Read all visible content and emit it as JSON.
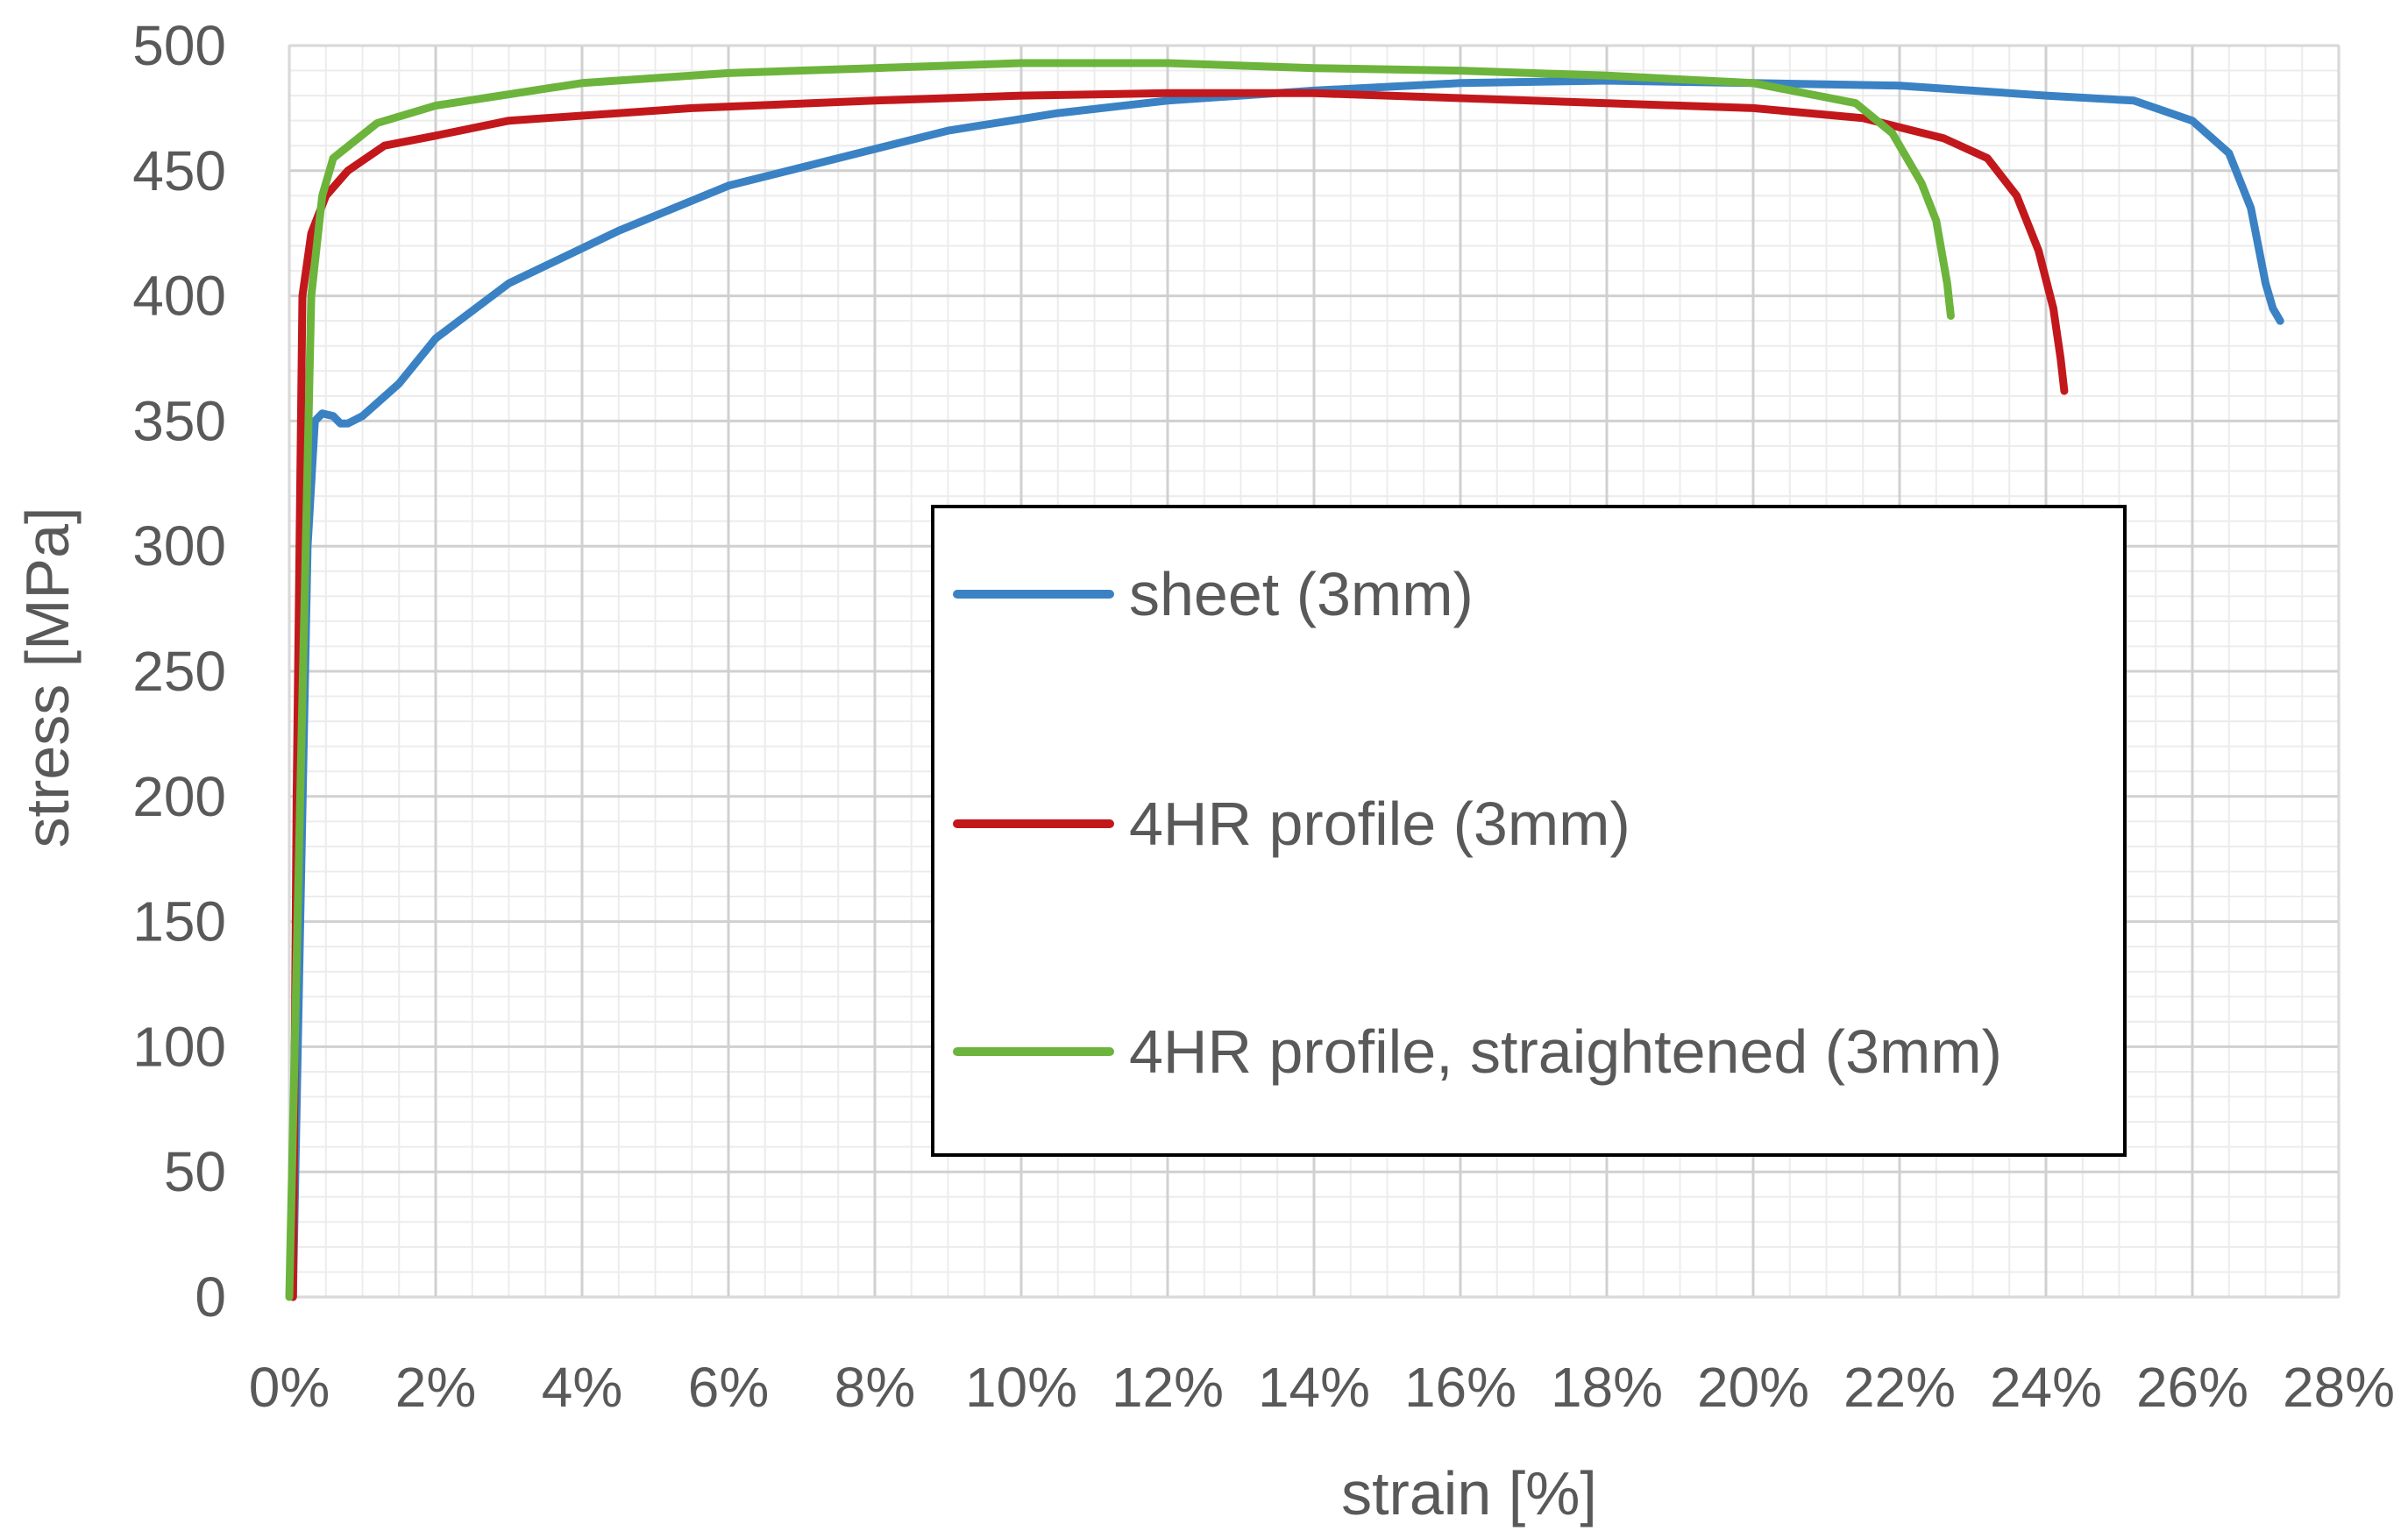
{
  "chart_data": {
    "type": "line",
    "title": "",
    "xlabel": "strain [%]",
    "ylabel": "stress  [MPa]",
    "xlim": [
      0,
      28
    ],
    "ylim": [
      0,
      500
    ],
    "x_ticks": [
      "0%",
      "2%",
      "4%",
      "6%",
      "8%",
      "10%",
      "12%",
      "14%",
      "16%",
      "18%",
      "20%",
      "22%",
      "24%",
      "26%",
      "28%"
    ],
    "y_ticks": [
      "0",
      "50",
      "100",
      "150",
      "200",
      "250",
      "300",
      "350",
      "400",
      "450",
      "500"
    ],
    "grid": true,
    "legend_position": "center-right",
    "series": [
      {
        "name": "sheet (3mm)",
        "color": "#3a82c4",
        "points": [
          [
            0.05,
            0
          ],
          [
            0.15,
            150
          ],
          [
            0.25,
            300
          ],
          [
            0.35,
            350
          ],
          [
            0.45,
            353
          ],
          [
            0.6,
            352
          ],
          [
            0.7,
            349
          ],
          [
            0.8,
            349
          ],
          [
            1.0,
            352
          ],
          [
            1.5,
            365
          ],
          [
            2.0,
            383
          ],
          [
            3.0,
            405
          ],
          [
            4.5,
            426
          ],
          [
            6.0,
            444
          ],
          [
            7.5,
            455
          ],
          [
            9.0,
            466
          ],
          [
            10.5,
            473
          ],
          [
            12.0,
            478
          ],
          [
            14.0,
            482
          ],
          [
            16.0,
            485
          ],
          [
            18.0,
            486
          ],
          [
            20.0,
            485
          ],
          [
            22.0,
            484
          ],
          [
            24.0,
            480
          ],
          [
            25.2,
            478
          ],
          [
            26.0,
            470
          ],
          [
            26.5,
            457
          ],
          [
            26.8,
            435
          ],
          [
            27.0,
            405
          ],
          [
            27.1,
            395
          ],
          [
            27.2,
            390
          ]
        ]
      },
      {
        "name": "4HR profile (3mm)",
        "color": "#c2181c",
        "points": [
          [
            0.05,
            0
          ],
          [
            0.1,
            200
          ],
          [
            0.18,
            400
          ],
          [
            0.3,
            425
          ],
          [
            0.5,
            440
          ],
          [
            0.8,
            450
          ],
          [
            1.3,
            460
          ],
          [
            2.0,
            464
          ],
          [
            3.0,
            470
          ],
          [
            5.5,
            475
          ],
          [
            8.0,
            478
          ],
          [
            10.0,
            480
          ],
          [
            12.0,
            481
          ],
          [
            14.0,
            481
          ],
          [
            16.0,
            479
          ],
          [
            18.0,
            477
          ],
          [
            20.0,
            475
          ],
          [
            21.5,
            471
          ],
          [
            22.6,
            463
          ],
          [
            23.2,
            455
          ],
          [
            23.6,
            440
          ],
          [
            23.9,
            418
          ],
          [
            24.1,
            395
          ],
          [
            24.2,
            375
          ],
          [
            24.25,
            362
          ]
        ]
      },
      {
        "name": "4HR profile, straightened (3mm)",
        "color": "#6cb43c",
        "points": [
          [
            0.0,
            0
          ],
          [
            0.15,
            200
          ],
          [
            0.3,
            400
          ],
          [
            0.45,
            440
          ],
          [
            0.6,
            455
          ],
          [
            1.2,
            469
          ],
          [
            2.0,
            476
          ],
          [
            4.0,
            485
          ],
          [
            6.0,
            489
          ],
          [
            8.0,
            491
          ],
          [
            10.0,
            493
          ],
          [
            12.0,
            493
          ],
          [
            14.0,
            491
          ],
          [
            16.0,
            490
          ],
          [
            18.0,
            488
          ],
          [
            20.0,
            485
          ],
          [
            21.4,
            477
          ],
          [
            21.9,
            465
          ],
          [
            22.3,
            445
          ],
          [
            22.5,
            430
          ],
          [
            22.65,
            405
          ],
          [
            22.7,
            392
          ]
        ]
      }
    ]
  }
}
